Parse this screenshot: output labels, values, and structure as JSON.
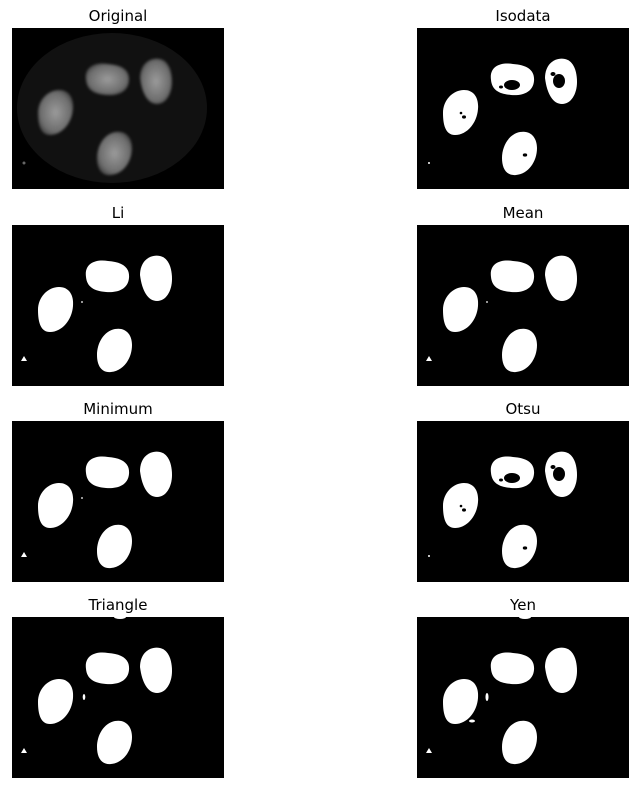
{
  "panels": [
    {
      "title": "Original",
      "kind": "original"
    },
    {
      "title": "Isodata",
      "kind": "holes"
    },
    {
      "title": "Li",
      "kind": "solid"
    },
    {
      "title": "Mean",
      "kind": "solid"
    },
    {
      "title": "Minimum",
      "kind": "solid"
    },
    {
      "title": "Otsu",
      "kind": "holes"
    },
    {
      "title": "Triangle",
      "kind": "triangle"
    },
    {
      "title": "Yen",
      "kind": "yen"
    }
  ],
  "colors": {
    "background": "#000000",
    "foreground": "#ffffff"
  }
}
